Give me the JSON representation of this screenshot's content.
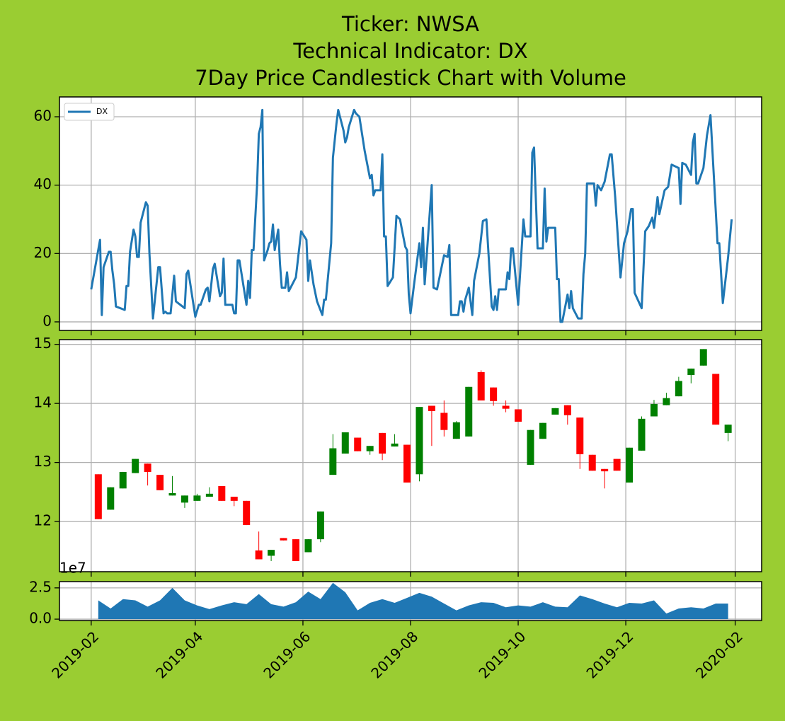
{
  "chart_data": [
    {
      "type": "line",
      "title": [
        "Ticker: NWSA",
        "Technical Indicator: DX",
        "7Day Price Candlestick Chart with Volume"
      ],
      "x": [
        "2019-02-01",
        "2019-02-06",
        "2019-02-07",
        "2019-02-08",
        "2019-02-11",
        "2019-02-12",
        "2019-02-13",
        "2019-02-14",
        "2019-02-15",
        "2019-02-20",
        "2019-02-21",
        "2019-02-22",
        "2019-02-23",
        "2019-02-25",
        "2019-02-26",
        "2019-02-27",
        "2019-02-28",
        "2019-03-01",
        "2019-03-04",
        "2019-03-05",
        "2019-03-06",
        "2019-03-08",
        "2019-03-11",
        "2019-03-12",
        "2019-03-14",
        "2019-03-15",
        "2019-03-16",
        "2019-03-18",
        "2019-03-20",
        "2019-03-21",
        "2019-03-26",
        "2019-03-27",
        "2019-03-28",
        "2019-04-01",
        "2019-04-03",
        "2019-04-04",
        "2019-04-07",
        "2019-04-08",
        "2019-04-09",
        "2019-04-11",
        "2019-04-12",
        "2019-04-15",
        "2019-04-16",
        "2019-04-17",
        "2019-04-18",
        "2019-04-22",
        "2019-04-23",
        "2019-04-24",
        "2019-04-25",
        "2019-04-26",
        "2019-04-30",
        "2019-05-01",
        "2019-05-02",
        "2019-05-03",
        "2019-05-04",
        "2019-05-06",
        "2019-05-07",
        "2019-05-08",
        "2019-05-09",
        "2019-05-10",
        "2019-05-12",
        "2019-05-13",
        "2019-05-14",
        "2019-05-15",
        "2019-05-16",
        "2019-05-18",
        "2019-05-19",
        "2019-05-20",
        "2019-05-22",
        "2019-05-23",
        "2019-05-24",
        "2019-05-28",
        "2019-05-31",
        "2019-06-03",
        "2019-06-04",
        "2019-06-05",
        "2019-06-07",
        "2019-06-09",
        "2019-06-12",
        "2019-06-13",
        "2019-06-14",
        "2019-06-17",
        "2019-06-18",
        "2019-06-20",
        "2019-06-21",
        "2019-06-24",
        "2019-06-25",
        "2019-06-26",
        "2019-06-27",
        "2019-06-30",
        "2019-07-01",
        "2019-07-03",
        "2019-07-06",
        "2019-07-09",
        "2019-07-10",
        "2019-07-11",
        "2019-07-12",
        "2019-07-15",
        "2019-07-16",
        "2019-07-17",
        "2019-07-18",
        "2019-07-19",
        "2019-07-22",
        "2019-07-24",
        "2019-07-26",
        "2019-07-29",
        "2019-07-30",
        "2019-07-31",
        "2019-08-01",
        "2019-08-03",
        "2019-08-06",
        "2019-08-07",
        "2019-08-08",
        "2019-08-09",
        "2019-08-13",
        "2019-08-14",
        "2019-08-16",
        "2019-08-20",
        "2019-08-22",
        "2019-08-23",
        "2019-08-24",
        "2019-08-28",
        "2019-08-29",
        "2019-08-30",
        "2019-08-31",
        "2019-09-01",
        "2019-09-03",
        "2019-09-05",
        "2019-09-06",
        "2019-09-09",
        "2019-09-11",
        "2019-09-13",
        "2019-09-16",
        "2019-09-17",
        "2019-09-18",
        "2019-09-19",
        "2019-09-20",
        "2019-09-24",
        "2019-09-25",
        "2019-09-26",
        "2019-09-27",
        "2019-09-28",
        "2019-10-01",
        "2019-10-04",
        "2019-10-05",
        "2019-10-08",
        "2019-10-09",
        "2019-10-10",
        "2019-10-12",
        "2019-10-15",
        "2019-10-16",
        "2019-10-17",
        "2019-10-18",
        "2019-10-22",
        "2019-10-23",
        "2019-10-24",
        "2019-10-25",
        "2019-10-26",
        "2019-10-29",
        "2019-10-30",
        "2019-10-31",
        "2019-11-01",
        "2019-11-04",
        "2019-11-06",
        "2019-11-07",
        "2019-11-08",
        "2019-11-09",
        "2019-11-13",
        "2019-11-14",
        "2019-11-15",
        "2019-11-17",
        "2019-11-19",
        "2019-11-22",
        "2019-11-23",
        "2019-11-25",
        "2019-11-28",
        "2019-11-30",
        "2019-12-02",
        "2019-12-04",
        "2019-12-05",
        "2019-12-06",
        "2019-12-10",
        "2019-12-12",
        "2019-12-14",
        "2019-12-16",
        "2019-12-17",
        "2019-12-19",
        "2019-12-20",
        "2019-12-23",
        "2019-12-25",
        "2019-12-27",
        "2019-12-31",
        "2020-01-01",
        "2020-01-02",
        "2020-01-04",
        "2020-01-07",
        "2020-01-08",
        "2020-01-09",
        "2020-01-10",
        "2020-01-11",
        "2020-01-14",
        "2020-01-16",
        "2020-01-18",
        "2020-01-22",
        "2020-01-23",
        "2020-01-25",
        "2020-01-28",
        "2020-01-30"
      ],
      "series": [
        {
          "name": "DX",
          "color": "#1f77b4",
          "values": [
            9.5,
            24,
            2,
            16,
            20.5,
            20.5,
            15,
            11,
            4.5,
            3.5,
            10.5,
            10.5,
            20.5,
            27,
            25,
            19,
            19,
            29,
            35,
            34,
            20,
            1,
            16,
            16,
            2.5,
            3,
            2.5,
            2.5,
            13.5,
            6,
            4,
            14,
            15,
            1.5,
            5,
            5,
            9.5,
            10,
            6,
            15.5,
            17,
            7.5,
            8.5,
            18.5,
            5,
            5,
            2.5,
            2.5,
            18,
            18,
            5,
            12,
            7,
            21,
            21,
            40,
            55,
            57,
            62,
            18,
            21,
            23,
            23.5,
            28.5,
            21,
            27,
            17,
            10,
            10,
            14.5,
            9,
            13,
            26.5,
            24,
            12,
            18,
            11,
            6,
            2,
            6.5,
            6.5,
            23,
            48,
            58,
            62,
            56,
            52.5,
            54,
            57,
            62,
            61,
            60,
            50,
            42,
            43,
            37,
            38.5,
            38.5,
            49,
            25,
            25,
            10.5,
            13,
            31,
            30,
            22,
            21,
            8,
            2.5,
            11,
            23,
            16,
            27.5,
            11,
            40,
            10,
            9.5,
            19.5,
            19,
            22.5,
            2,
            2,
            6,
            6,
            3,
            6.5,
            10,
            2,
            12,
            20,
            29.5,
            30,
            4.5,
            3.5,
            7.5,
            3.5,
            9.5,
            9.5,
            14.5,
            12.5,
            21.5,
            21.5,
            5,
            30,
            25,
            25,
            49.5,
            51,
            21.5,
            21.5,
            39,
            23.5,
            27.5,
            27.5,
            12.5,
            12.5,
            0,
            0,
            8,
            4,
            9,
            4,
            1,
            1,
            14,
            20,
            40.5,
            40.5,
            34,
            40,
            38.5,
            41,
            49,
            49,
            36.5,
            13,
            23,
            26.5,
            33,
            33,
            8.5,
            4,
            26.5,
            28,
            30.5,
            27.5,
            36.5,
            31.5,
            38.5,
            39.5,
            46,
            45,
            34.5,
            46.5,
            46,
            43,
            52.5,
            55,
            40.5,
            40.5,
            45,
            54.5,
            60.5,
            23,
            23,
            5.5,
            19,
            30
          ]
        }
      ],
      "xlim": [
        "2019-01-14",
        "2020-02-16"
      ],
      "xticks": [
        "2019-02",
        "2019-04",
        "2019-06",
        "2019-08",
        "2019-10",
        "2019-12",
        "2020-02"
      ],
      "ylim": [
        -2.5,
        65.8
      ],
      "yticks": [
        0,
        20,
        40,
        60
      ],
      "grid": true,
      "legend": "upper left"
    },
    {
      "type": "candlestick",
      "x": [
        "2019-02-05",
        "2019-02-12",
        "2019-02-19",
        "2019-02-26",
        "2019-03-05",
        "2019-03-12",
        "2019-03-19",
        "2019-03-26",
        "2019-04-02",
        "2019-04-09",
        "2019-04-16",
        "2019-04-23",
        "2019-04-30",
        "2019-05-07",
        "2019-05-14",
        "2019-05-21",
        "2019-05-28",
        "2019-06-04",
        "2019-06-11",
        "2019-06-18",
        "2019-06-25",
        "2019-07-02",
        "2019-07-09",
        "2019-07-16",
        "2019-07-23",
        "2019-07-30",
        "2019-08-06",
        "2019-08-13",
        "2019-08-20",
        "2019-08-27",
        "2019-09-03",
        "2019-09-10",
        "2019-09-17",
        "2019-09-24",
        "2019-10-01",
        "2019-10-08",
        "2019-10-15",
        "2019-10-22",
        "2019-10-29",
        "2019-11-05",
        "2019-11-12",
        "2019-11-19",
        "2019-11-26",
        "2019-12-03",
        "2019-12-10",
        "2019-12-17",
        "2019-12-24",
        "2019-12-31",
        "2020-01-07",
        "2020-01-14",
        "2020-01-21",
        "2020-01-28"
      ],
      "open": [
        12.8,
        12.2,
        12.56,
        12.82,
        12.98,
        12.79,
        12.44,
        12.32,
        12.35,
        12.42,
        12.6,
        12.42,
        12.35,
        11.51,
        11.42,
        11.72,
        11.7,
        11.48,
        11.7,
        12.79,
        13.15,
        13.42,
        13.19,
        13.5,
        13.27,
        13.3,
        12.8,
        13.96,
        13.84,
        13.4,
        13.44,
        14.53,
        14.27,
        13.96,
        13.9,
        12.96,
        13.4,
        13.81,
        13.97,
        13.76,
        13.13,
        12.89,
        13.06,
        12.66,
        13.2,
        13.78,
        13.97,
        14.12,
        14.48,
        14.64,
        14.5,
        13.5
      ],
      "high": [
        12.8,
        12.58,
        12.84,
        13.06,
        12.98,
        12.79,
        12.77,
        12.44,
        12.47,
        12.58,
        12.6,
        12.42,
        12.35,
        11.83,
        11.52,
        11.72,
        11.7,
        11.7,
        12.17,
        13.48,
        13.51,
        13.42,
        13.28,
        13.5,
        13.48,
        13.3,
        13.94,
        13.96,
        14.05,
        13.7,
        14.28,
        14.56,
        14.27,
        14.05,
        13.9,
        13.55,
        13.67,
        13.92,
        13.97,
        13.76,
        13.13,
        12.89,
        13.06,
        13.25,
        13.78,
        14.06,
        14.18,
        14.45,
        14.59,
        14.92,
        14.5,
        13.64
      ],
      "low": [
        12.04,
        12.2,
        12.56,
        12.82,
        12.61,
        12.53,
        12.44,
        12.23,
        12.35,
        12.42,
        12.35,
        12.26,
        11.94,
        11.36,
        11.33,
        11.68,
        11.33,
        11.48,
        11.65,
        12.79,
        13.15,
        13.19,
        13.13,
        13.04,
        13.27,
        12.66,
        12.68,
        13.28,
        13.44,
        13.4,
        13.44,
        14.05,
        13.96,
        13.85,
        13.69,
        12.96,
        13.4,
        13.81,
        13.64,
        12.89,
        12.86,
        12.56,
        12.86,
        12.66,
        13.2,
        13.78,
        13.97,
        14.12,
        14.34,
        14.64,
        13.64,
        13.36
      ],
      "close": [
        12.04,
        12.58,
        12.84,
        13.06,
        12.84,
        12.53,
        12.48,
        12.44,
        12.44,
        12.47,
        12.35,
        12.35,
        11.94,
        11.36,
        11.52,
        11.68,
        11.33,
        11.7,
        12.17,
        13.24,
        13.51,
        13.19,
        13.28,
        13.15,
        13.32,
        12.66,
        13.94,
        13.87,
        13.55,
        13.68,
        14.28,
        14.05,
        14.04,
        13.91,
        13.69,
        13.55,
        13.67,
        13.92,
        13.8,
        13.14,
        12.86,
        12.85,
        12.86,
        13.25,
        13.74,
        13.99,
        14.09,
        14.38,
        14.59,
        14.92,
        13.64,
        13.64
      ],
      "up_color": "green",
      "down_color": "red",
      "xlim": [
        "2019-01-14",
        "2020-02-16"
      ],
      "xticks": [
        "2019-02",
        "2019-04",
        "2019-06",
        "2019-08",
        "2019-10",
        "2019-12",
        "2020-02"
      ],
      "ylim": [
        11.15,
        15.08
      ],
      "yticks": [
        12,
        13,
        14,
        15
      ],
      "grid": true
    },
    {
      "type": "area",
      "x": [
        "2019-02-05",
        "2019-02-12",
        "2019-02-19",
        "2019-02-26",
        "2019-03-05",
        "2019-03-12",
        "2019-03-19",
        "2019-03-26",
        "2019-04-02",
        "2019-04-09",
        "2019-04-16",
        "2019-04-23",
        "2019-04-30",
        "2019-05-07",
        "2019-05-14",
        "2019-05-21",
        "2019-05-28",
        "2019-06-04",
        "2019-06-11",
        "2019-06-18",
        "2019-06-25",
        "2019-07-02",
        "2019-07-09",
        "2019-07-16",
        "2019-07-23",
        "2019-07-30",
        "2019-08-06",
        "2019-08-13",
        "2019-08-20",
        "2019-08-27",
        "2019-09-03",
        "2019-09-10",
        "2019-09-17",
        "2019-09-24",
        "2019-10-01",
        "2019-10-08",
        "2019-10-15",
        "2019-10-22",
        "2019-10-29",
        "2019-11-05",
        "2019-11-12",
        "2019-11-19",
        "2019-11-26",
        "2019-12-03",
        "2019-12-10",
        "2019-12-17",
        "2019-12-24",
        "2019-12-31",
        "2020-01-07",
        "2020-01-14",
        "2020-01-21",
        "2020-01-28"
      ],
      "values": [
        1.5,
        0.85,
        1.6,
        1.5,
        1.0,
        1.5,
        2.5,
        1.5,
        1.1,
        0.8,
        1.1,
        1.35,
        1.2,
        2.0,
        1.2,
        1.0,
        1.35,
        2.2,
        1.6,
        2.9,
        2.15,
        0.7,
        1.3,
        1.6,
        1.3,
        1.7,
        2.1,
        1.8,
        1.25,
        0.7,
        1.1,
        1.35,
        1.3,
        0.95,
        1.1,
        1.0,
        1.35,
        1.0,
        0.95,
        1.9,
        1.6,
        1.25,
        0.95,
        1.3,
        1.25,
        1.5,
        0.45,
        0.85,
        0.95,
        0.85,
        1.25,
        1.25
      ],
      "color": "#1f77b4",
      "offset_label": "1e7",
      "xlim": [
        "2019-01-14",
        "2020-02-16"
      ],
      "xticks": [
        "2019-02",
        "2019-04",
        "2019-06",
        "2019-08",
        "2019-10",
        "2019-12",
        "2020-02"
      ],
      "ylim": [
        -0.11,
        3.0
      ],
      "yticks": [
        {
          "value": 0,
          "label": "0.0"
        },
        2.5
      ],
      "grid": true
    }
  ]
}
